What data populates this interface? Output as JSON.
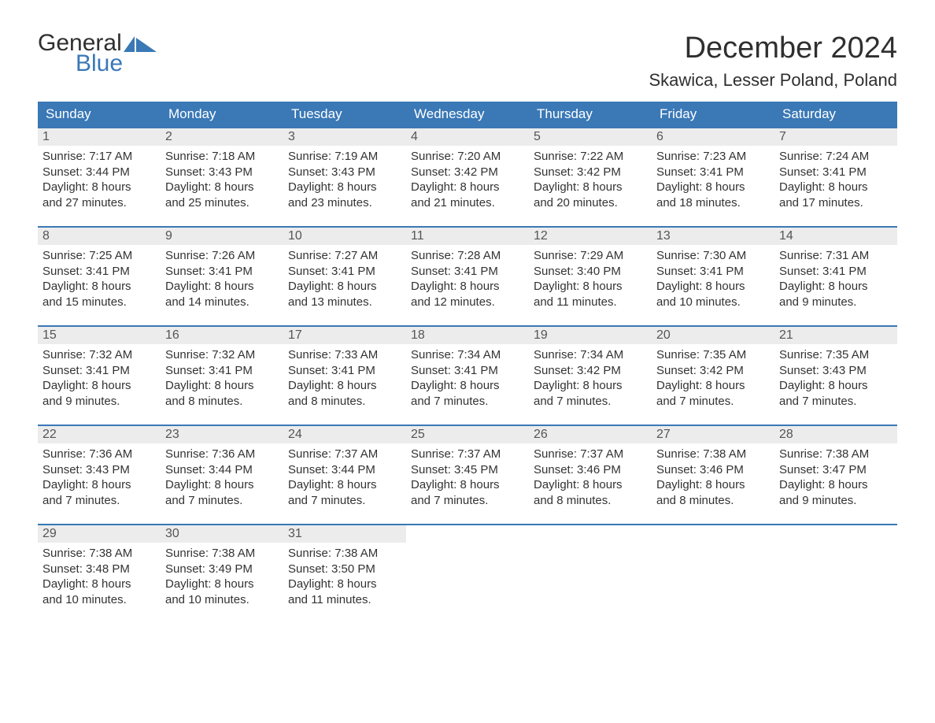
{
  "brand": {
    "word1": "General",
    "word2": "Blue",
    "brand_color": "#3a78b6"
  },
  "title": "December 2024",
  "location": "Skawica, Lesser Poland, Poland",
  "colors": {
    "header_bg": "#3a78b6",
    "header_text": "#ffffff",
    "daynum_bg": "#ececec",
    "daynum_text": "#555555",
    "body_text": "#333333",
    "page_bg": "#ffffff"
  },
  "day_names": [
    "Sunday",
    "Monday",
    "Tuesday",
    "Wednesday",
    "Thursday",
    "Friday",
    "Saturday"
  ],
  "weeks": [
    [
      {
        "n": "1",
        "sunrise": "Sunrise: 7:17 AM",
        "sunset": "Sunset: 3:44 PM",
        "d1": "Daylight: 8 hours",
        "d2": "and 27 minutes."
      },
      {
        "n": "2",
        "sunrise": "Sunrise: 7:18 AM",
        "sunset": "Sunset: 3:43 PM",
        "d1": "Daylight: 8 hours",
        "d2": "and 25 minutes."
      },
      {
        "n": "3",
        "sunrise": "Sunrise: 7:19 AM",
        "sunset": "Sunset: 3:43 PM",
        "d1": "Daylight: 8 hours",
        "d2": "and 23 minutes."
      },
      {
        "n": "4",
        "sunrise": "Sunrise: 7:20 AM",
        "sunset": "Sunset: 3:42 PM",
        "d1": "Daylight: 8 hours",
        "d2": "and 21 minutes."
      },
      {
        "n": "5",
        "sunrise": "Sunrise: 7:22 AM",
        "sunset": "Sunset: 3:42 PM",
        "d1": "Daylight: 8 hours",
        "d2": "and 20 minutes."
      },
      {
        "n": "6",
        "sunrise": "Sunrise: 7:23 AM",
        "sunset": "Sunset: 3:41 PM",
        "d1": "Daylight: 8 hours",
        "d2": "and 18 minutes."
      },
      {
        "n": "7",
        "sunrise": "Sunrise: 7:24 AM",
        "sunset": "Sunset: 3:41 PM",
        "d1": "Daylight: 8 hours",
        "d2": "and 17 minutes."
      }
    ],
    [
      {
        "n": "8",
        "sunrise": "Sunrise: 7:25 AM",
        "sunset": "Sunset: 3:41 PM",
        "d1": "Daylight: 8 hours",
        "d2": "and 15 minutes."
      },
      {
        "n": "9",
        "sunrise": "Sunrise: 7:26 AM",
        "sunset": "Sunset: 3:41 PM",
        "d1": "Daylight: 8 hours",
        "d2": "and 14 minutes."
      },
      {
        "n": "10",
        "sunrise": "Sunrise: 7:27 AM",
        "sunset": "Sunset: 3:41 PM",
        "d1": "Daylight: 8 hours",
        "d2": "and 13 minutes."
      },
      {
        "n": "11",
        "sunrise": "Sunrise: 7:28 AM",
        "sunset": "Sunset: 3:41 PM",
        "d1": "Daylight: 8 hours",
        "d2": "and 12 minutes."
      },
      {
        "n": "12",
        "sunrise": "Sunrise: 7:29 AM",
        "sunset": "Sunset: 3:40 PM",
        "d1": "Daylight: 8 hours",
        "d2": "and 11 minutes."
      },
      {
        "n": "13",
        "sunrise": "Sunrise: 7:30 AM",
        "sunset": "Sunset: 3:41 PM",
        "d1": "Daylight: 8 hours",
        "d2": "and 10 minutes."
      },
      {
        "n": "14",
        "sunrise": "Sunrise: 7:31 AM",
        "sunset": "Sunset: 3:41 PM",
        "d1": "Daylight: 8 hours",
        "d2": "and 9 minutes."
      }
    ],
    [
      {
        "n": "15",
        "sunrise": "Sunrise: 7:32 AM",
        "sunset": "Sunset: 3:41 PM",
        "d1": "Daylight: 8 hours",
        "d2": "and 9 minutes."
      },
      {
        "n": "16",
        "sunrise": "Sunrise: 7:32 AM",
        "sunset": "Sunset: 3:41 PM",
        "d1": "Daylight: 8 hours",
        "d2": "and 8 minutes."
      },
      {
        "n": "17",
        "sunrise": "Sunrise: 7:33 AM",
        "sunset": "Sunset: 3:41 PM",
        "d1": "Daylight: 8 hours",
        "d2": "and 8 minutes."
      },
      {
        "n": "18",
        "sunrise": "Sunrise: 7:34 AM",
        "sunset": "Sunset: 3:41 PM",
        "d1": "Daylight: 8 hours",
        "d2": "and 7 minutes."
      },
      {
        "n": "19",
        "sunrise": "Sunrise: 7:34 AM",
        "sunset": "Sunset: 3:42 PM",
        "d1": "Daylight: 8 hours",
        "d2": "and 7 minutes."
      },
      {
        "n": "20",
        "sunrise": "Sunrise: 7:35 AM",
        "sunset": "Sunset: 3:42 PM",
        "d1": "Daylight: 8 hours",
        "d2": "and 7 minutes."
      },
      {
        "n": "21",
        "sunrise": "Sunrise: 7:35 AM",
        "sunset": "Sunset: 3:43 PM",
        "d1": "Daylight: 8 hours",
        "d2": "and 7 minutes."
      }
    ],
    [
      {
        "n": "22",
        "sunrise": "Sunrise: 7:36 AM",
        "sunset": "Sunset: 3:43 PM",
        "d1": "Daylight: 8 hours",
        "d2": "and 7 minutes."
      },
      {
        "n": "23",
        "sunrise": "Sunrise: 7:36 AM",
        "sunset": "Sunset: 3:44 PM",
        "d1": "Daylight: 8 hours",
        "d2": "and 7 minutes."
      },
      {
        "n": "24",
        "sunrise": "Sunrise: 7:37 AM",
        "sunset": "Sunset: 3:44 PM",
        "d1": "Daylight: 8 hours",
        "d2": "and 7 minutes."
      },
      {
        "n": "25",
        "sunrise": "Sunrise: 7:37 AM",
        "sunset": "Sunset: 3:45 PM",
        "d1": "Daylight: 8 hours",
        "d2": "and 7 minutes."
      },
      {
        "n": "26",
        "sunrise": "Sunrise: 7:37 AM",
        "sunset": "Sunset: 3:46 PM",
        "d1": "Daylight: 8 hours",
        "d2": "and 8 minutes."
      },
      {
        "n": "27",
        "sunrise": "Sunrise: 7:38 AM",
        "sunset": "Sunset: 3:46 PM",
        "d1": "Daylight: 8 hours",
        "d2": "and 8 minutes."
      },
      {
        "n": "28",
        "sunrise": "Sunrise: 7:38 AM",
        "sunset": "Sunset: 3:47 PM",
        "d1": "Daylight: 8 hours",
        "d2": "and 9 minutes."
      }
    ],
    [
      {
        "n": "29",
        "sunrise": "Sunrise: 7:38 AM",
        "sunset": "Sunset: 3:48 PM",
        "d1": "Daylight: 8 hours",
        "d2": "and 10 minutes."
      },
      {
        "n": "30",
        "sunrise": "Sunrise: 7:38 AM",
        "sunset": "Sunset: 3:49 PM",
        "d1": "Daylight: 8 hours",
        "d2": "and 10 minutes."
      },
      {
        "n": "31",
        "sunrise": "Sunrise: 7:38 AM",
        "sunset": "Sunset: 3:50 PM",
        "d1": "Daylight: 8 hours",
        "d2": "and 11 minutes."
      },
      null,
      null,
      null,
      null
    ]
  ]
}
